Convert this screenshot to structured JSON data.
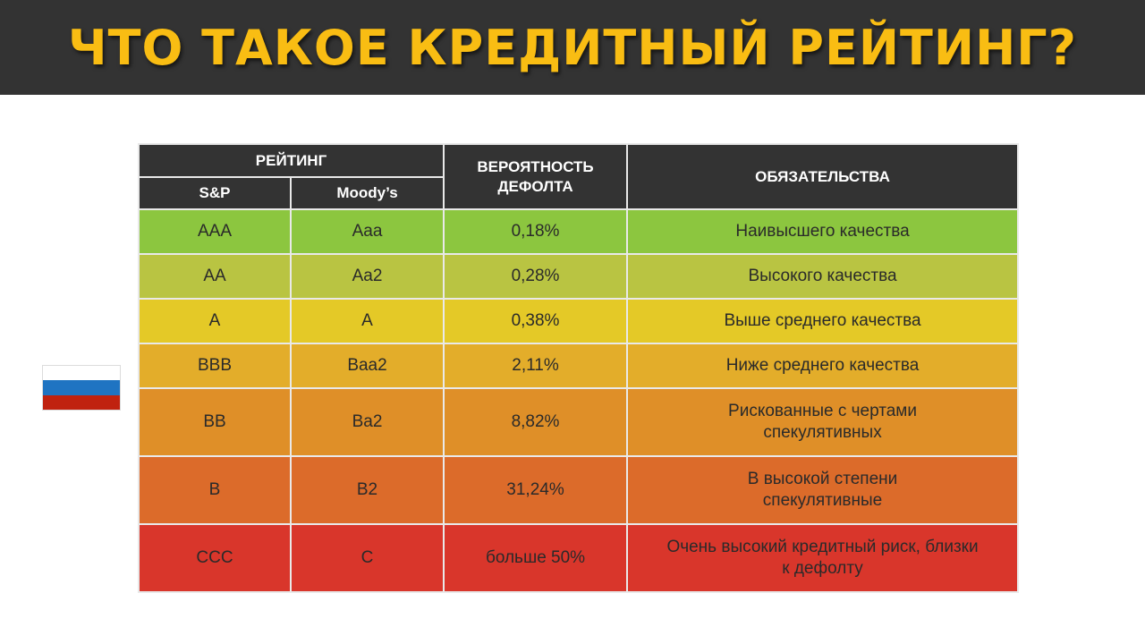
{
  "title": "ЧТО ТАКОЕ КРЕДИТНЫЙ РЕЙТИНГ?",
  "colors": {
    "title_bar": "#333333",
    "title_text": "#f9bd13",
    "header_bg": "#333333"
  },
  "flag": {
    "icon": "russian-flag-icon",
    "stripes": [
      "#ffffff",
      "#1f74c2",
      "#c0220f"
    ]
  },
  "table": {
    "headers": {
      "rating": "РЕЙТИНГ",
      "sp": "S&P",
      "moodys": "Moody’s",
      "probability": "ВЕРОЯТНОСТЬ ДЕФОЛТА",
      "obligations": "ОБЯЗАТЕЛЬСТВА"
    },
    "rows": [
      {
        "sp": "AAA",
        "moodys": "Aaa",
        "probability": "0,18%",
        "obligations": "Наивысшего качества",
        "color": "#8cc63f"
      },
      {
        "sp": "AA",
        "moodys": "Aa2",
        "probability": "0,28%",
        "obligations": "Высокого качества",
        "color": "#b9c442"
      },
      {
        "sp": "A",
        "moodys": "A",
        "probability": "0,38%",
        "obligations": "Выше среднего качества",
        "color": "#e4c927"
      },
      {
        "sp": "BBB",
        "moodys": "Baa2",
        "probability": "2,11%",
        "obligations": "Ниже среднего качества",
        "color": "#e3ad2a"
      },
      {
        "sp": "BB",
        "moodys": "Ba2",
        "probability": "8,82%",
        "obligations": "Рискованные с чертами спекулятивных",
        "color": "#df8f28"
      },
      {
        "sp": "B",
        "moodys": "B2",
        "probability": "31,24%",
        "obligations": "В высокой степени спекулятивные",
        "color": "#dc6b2a"
      },
      {
        "sp": "CCC",
        "moodys": "C",
        "probability": "больше 50%",
        "obligations": "Очень высокий кредитный риск, близки к дефолту",
        "color": "#d9362b"
      }
    ]
  }
}
